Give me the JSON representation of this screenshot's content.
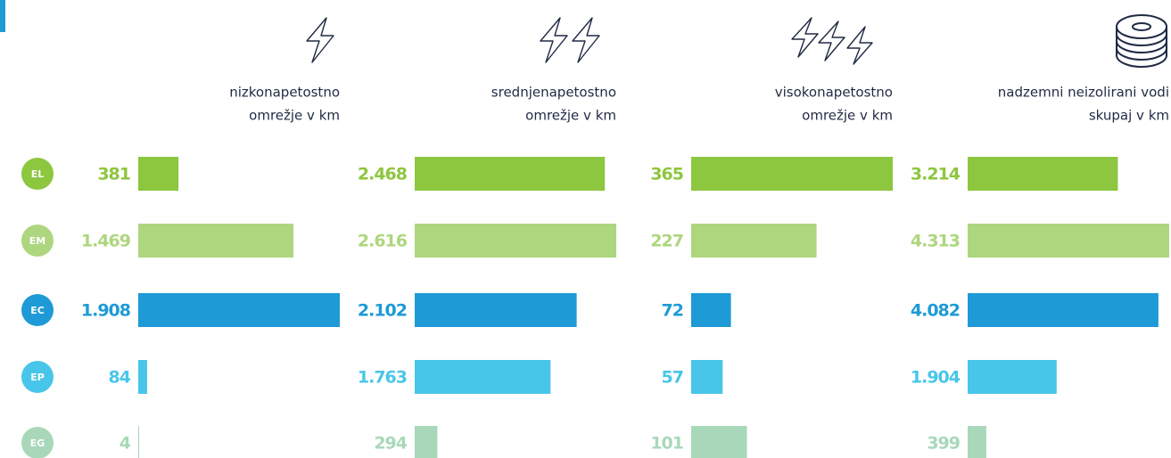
{
  "categories": [
    "EL",
    "EM",
    "EC",
    "EP",
    "EG"
  ],
  "colors": [
    "#8dc63f",
    "#aed67e",
    "#1e9ad6",
    "#48c6e9",
    "#a8d8b9"
  ],
  "chart_data": [
    {
      "type": "bar",
      "title": [
        "nizkonapetostno",
        "omrežje v km"
      ],
      "values": [
        381,
        1469,
        1908,
        84,
        4
      ],
      "value_labels": [
        "381",
        "1.469",
        "1.908",
        "84",
        "4"
      ]
    },
    {
      "type": "bar",
      "title": [
        "srednjenapetostno",
        "omrežje v km"
      ],
      "values": [
        2468,
        2616,
        2102,
        1763,
        294
      ],
      "value_labels": [
        "2.468",
        "2.616",
        "2.102",
        "1.763",
        "294"
      ]
    },
    {
      "type": "bar",
      "title": [
        "visokonapetostno",
        "omrežje v km"
      ],
      "values": [
        365,
        227,
        72,
        57,
        101
      ],
      "value_labels": [
        "365",
        "227",
        "72",
        "57",
        "101"
      ]
    },
    {
      "type": "bar",
      "title": [
        "nadzemni neizolirani vodi",
        "skupaj v km"
      ],
      "values": [
        3214,
        4313,
        4082,
        1904,
        399
      ],
      "value_labels": [
        "3.214",
        "4.313",
        "4.082",
        "1.904",
        "399"
      ]
    }
  ]
}
